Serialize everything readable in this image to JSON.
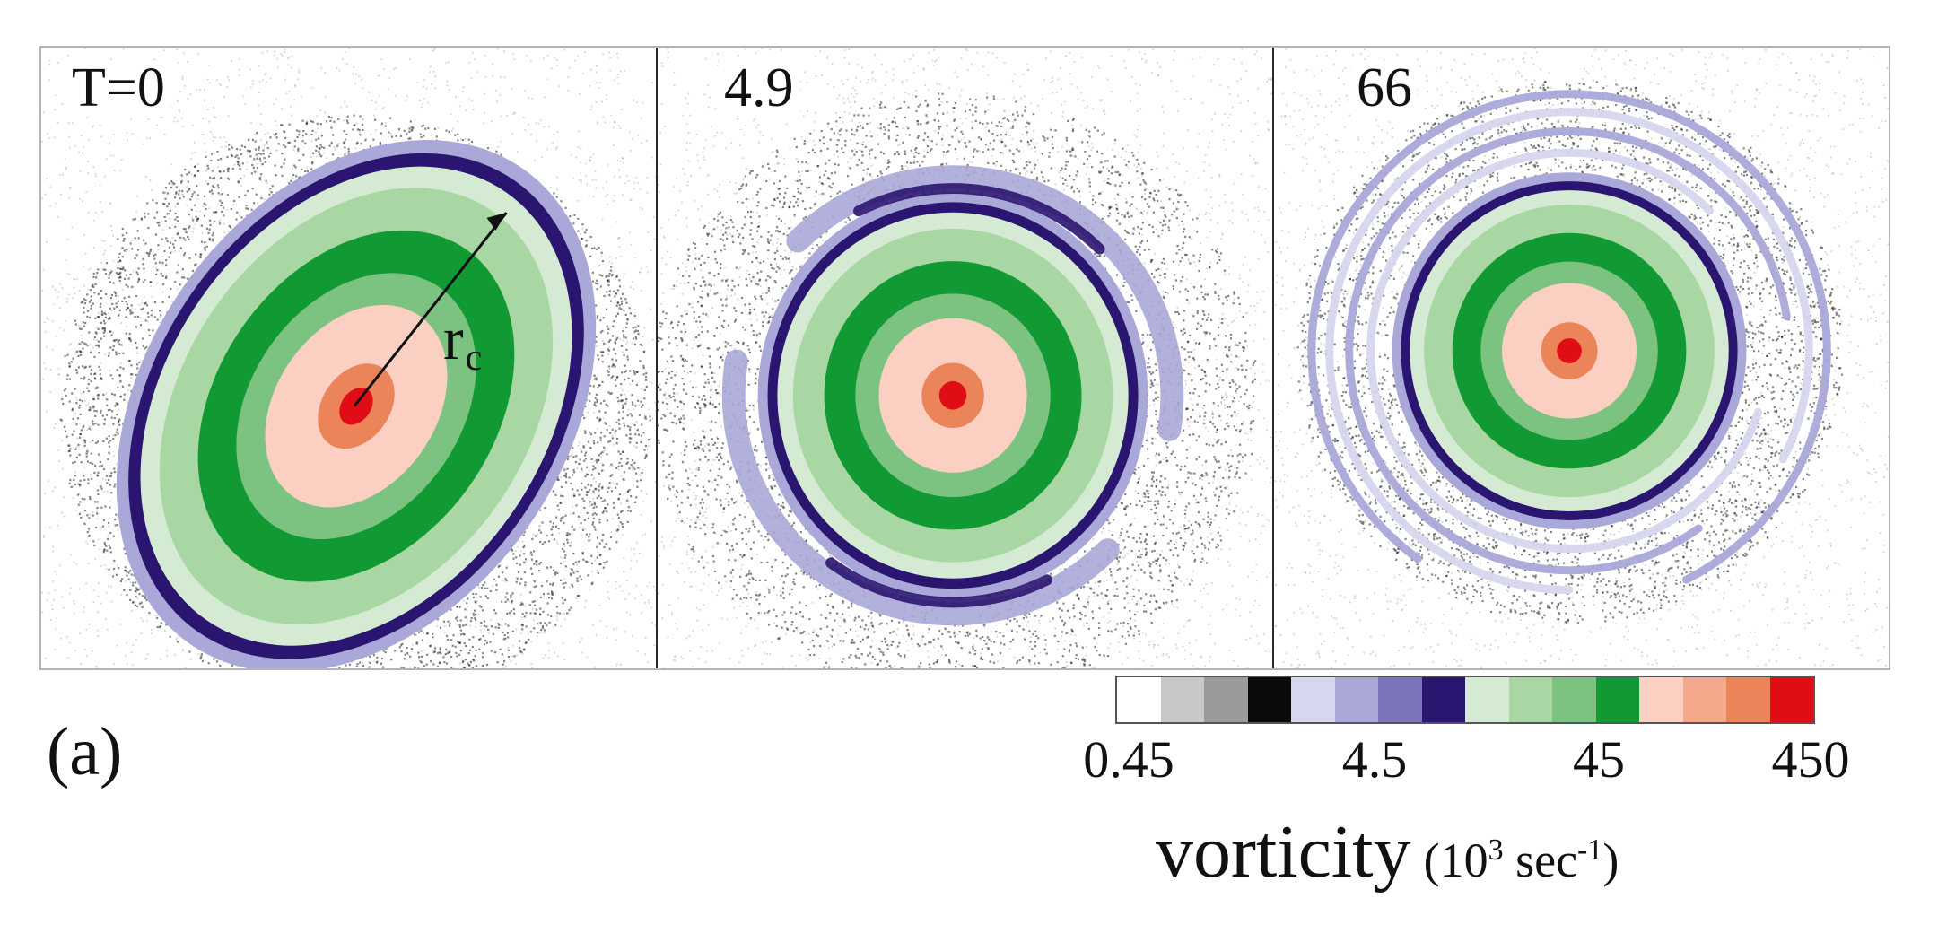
{
  "panels": [
    {
      "label": "T=0",
      "show_radius": true,
      "radius_label": "r",
      "radius_subscript": "c"
    },
    {
      "label": "4.9",
      "show_radius": false
    },
    {
      "label": "66",
      "show_radius": false
    }
  ],
  "figure_label": "(a)",
  "colorbar": {
    "colors": [
      "#ffffff",
      "#c8c8c8",
      "#9a9a9a",
      "#0a0a0a",
      "#d6d6ee",
      "#aaa8d8",
      "#7b74bb",
      "#2a1570",
      "#d4ead2",
      "#a9d7a4",
      "#7cc281",
      "#119a33",
      "#fbd0c2",
      "#f4a98b",
      "#ec8459",
      "#e00d16"
    ],
    "ticks": [
      "0.45",
      "4.5",
      "45",
      "450"
    ],
    "title": "vorticity",
    "unit_open": "(10",
    "unit_exp": "3",
    "unit_mid": " sec",
    "unit_exp2": "-1",
    "unit_close": ")"
  }
}
